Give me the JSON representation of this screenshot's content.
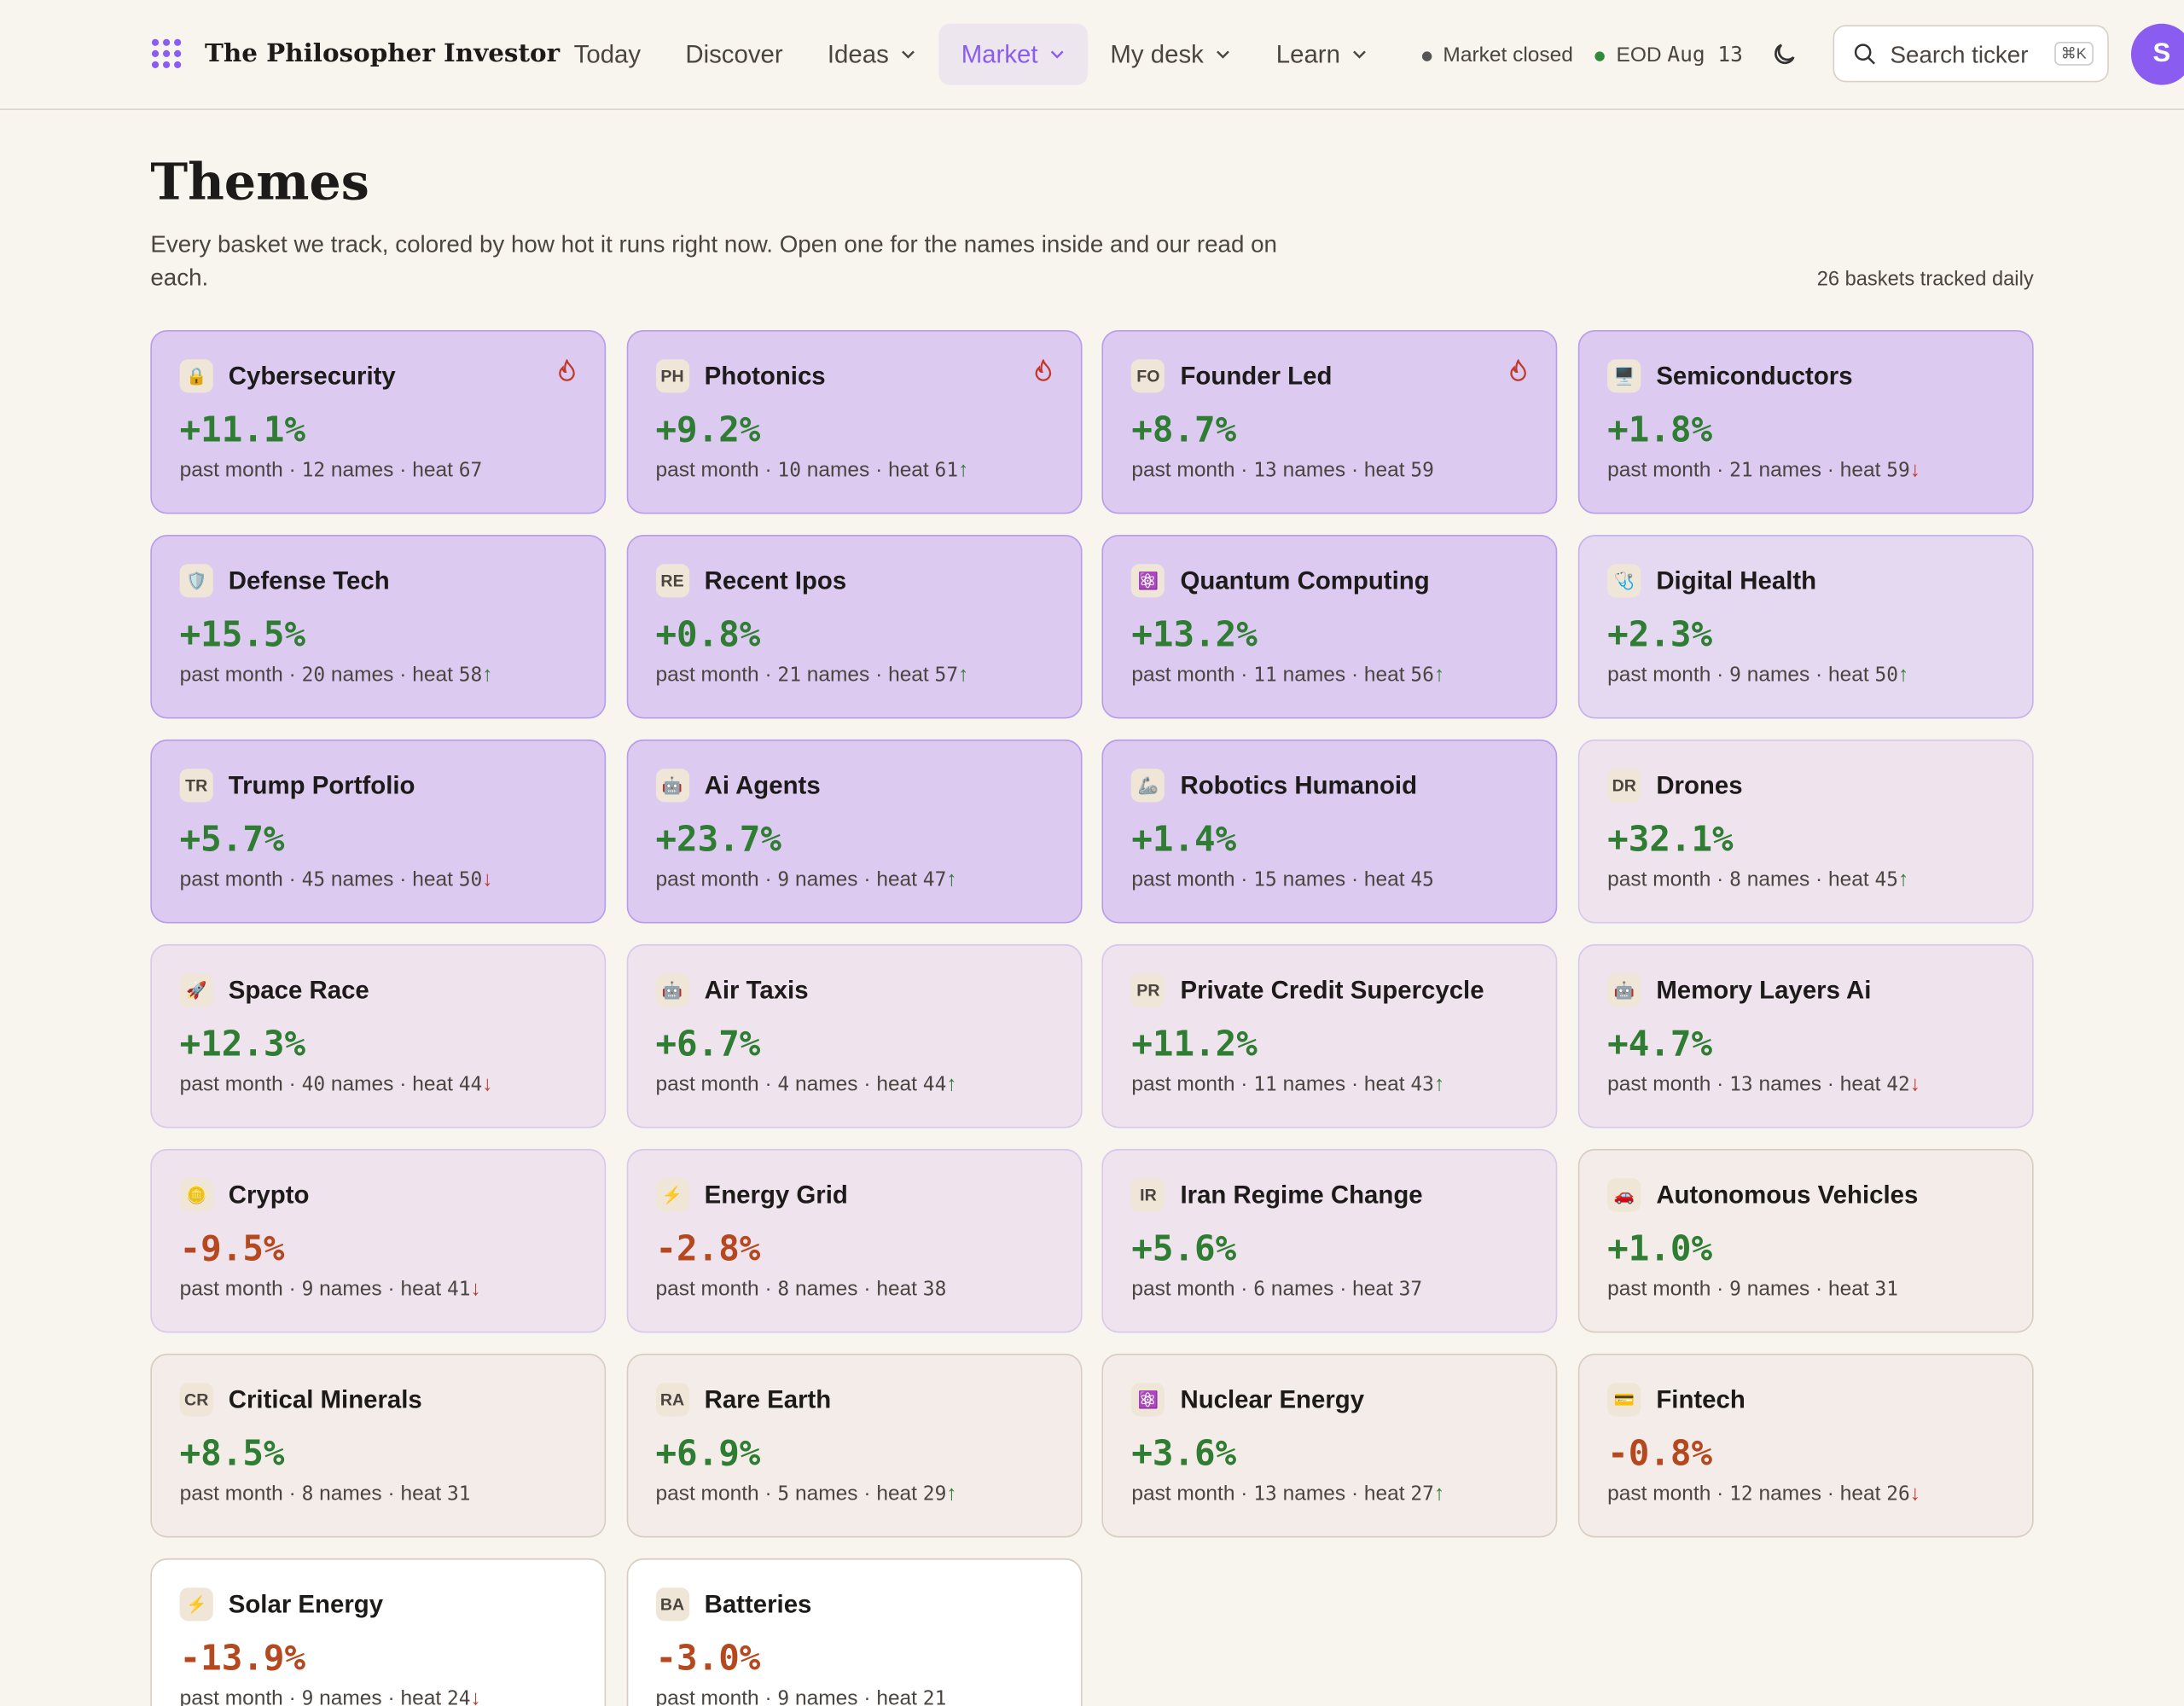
{
  "header": {
    "brand": "The Philosopher Investor",
    "nav": [
      {
        "label": "Today",
        "menu": false,
        "active": false
      },
      {
        "label": "Discover",
        "menu": false,
        "active": false
      },
      {
        "label": "Ideas",
        "menu": true,
        "active": false
      },
      {
        "label": "Market",
        "menu": true,
        "active": true
      },
      {
        "label": "My desk",
        "menu": true,
        "active": false
      },
      {
        "label": "Learn",
        "menu": true,
        "active": false
      }
    ],
    "status": "Market closed",
    "eod": "EOD",
    "eod_date": "Aug 13",
    "search": "Search ticker",
    "shortcut": "⌘K",
    "avatar": "S"
  },
  "page": {
    "title": "Themes",
    "description": "Every basket we track, colored by how hot it runs right now. Open one for the names inside and our read on each.",
    "count_note": "26 baskets tracked daily",
    "period": "past month",
    "names_unit": "names",
    "heat_unit": "heat"
  },
  "themes": [
    {
      "name": "Cybersecurity",
      "icon": "🔒",
      "change": "+11.1%",
      "names": 12,
      "heat": 67,
      "trend": null,
      "hot": true,
      "tint": "hot"
    },
    {
      "name": "Photonics",
      "icon": "PH",
      "change": "+9.2%",
      "names": 10,
      "heat": 61,
      "trend": "up",
      "hot": true,
      "tint": "hot"
    },
    {
      "name": "Founder Led",
      "icon": "FO",
      "change": "+8.7%",
      "names": 13,
      "heat": 59,
      "trend": null,
      "hot": true,
      "tint": "hot"
    },
    {
      "name": "Semiconductors",
      "icon": "🖥️",
      "change": "+1.8%",
      "names": 21,
      "heat": 59,
      "trend": "down",
      "hot": false,
      "tint": "hot"
    },
    {
      "name": "Defense Tech",
      "icon": "🛡️",
      "change": "+15.5%",
      "names": 20,
      "heat": 58,
      "trend": "up",
      "hot": false,
      "tint": "hot"
    },
    {
      "name": "Recent Ipos",
      "icon": "RE",
      "change": "+0.8%",
      "names": 21,
      "heat": 57,
      "trend": "up",
      "hot": false,
      "tint": "hot"
    },
    {
      "name": "Quantum Computing",
      "icon": "⚛️",
      "change": "+13.2%",
      "names": 11,
      "heat": 56,
      "trend": "up",
      "hot": false,
      "tint": "hot"
    },
    {
      "name": "Digital Health",
      "icon": "🩺",
      "change": "+2.3%",
      "names": 9,
      "heat": 50,
      "trend": "up",
      "hot": false,
      "tint": "warm"
    },
    {
      "name": "Trump Portfolio",
      "icon": "TR",
      "change": "+5.7%",
      "names": 45,
      "heat": 50,
      "trend": "down",
      "hot": false,
      "tint": "hot"
    },
    {
      "name": "Ai Agents",
      "icon": "🤖",
      "change": "+23.7%",
      "names": 9,
      "heat": 47,
      "trend": "up",
      "hot": false,
      "tint": "hot"
    },
    {
      "name": "Robotics Humanoid",
      "icon": "🦾",
      "change": "+1.4%",
      "names": 15,
      "heat": 45,
      "trend": null,
      "hot": false,
      "tint": "hot"
    },
    {
      "name": "Drones",
      "icon": "DR",
      "change": "+32.1%",
      "names": 8,
      "heat": 45,
      "trend": "up",
      "hot": false,
      "tint": "mild"
    },
    {
      "name": "Space Race",
      "icon": "🚀",
      "change": "+12.3%",
      "names": 40,
      "heat": 44,
      "trend": "down",
      "hot": false,
      "tint": "mild"
    },
    {
      "name": "Air Taxis",
      "icon": "🤖",
      "change": "+6.7%",
      "names": 4,
      "heat": 44,
      "trend": "up",
      "hot": false,
      "tint": "mild"
    },
    {
      "name": "Private Credit Supercycle",
      "icon": "PR",
      "change": "+11.2%",
      "names": 11,
      "heat": 43,
      "trend": "up",
      "hot": false,
      "tint": "mild"
    },
    {
      "name": "Memory Layers Ai",
      "icon": "🤖",
      "change": "+4.7%",
      "names": 13,
      "heat": 42,
      "trend": "down",
      "hot": false,
      "tint": "mild"
    },
    {
      "name": "Crypto",
      "icon": "🪙",
      "change": "-9.5%",
      "names": 9,
      "heat": 41,
      "trend": "down",
      "hot": false,
      "tint": "mild"
    },
    {
      "name": "Energy Grid",
      "icon": "⚡",
      "change": "-2.8%",
      "names": 8,
      "heat": 38,
      "trend": null,
      "hot": false,
      "tint": "mild"
    },
    {
      "name": "Iran Regime Change",
      "icon": "IR",
      "change": "+5.6%",
      "names": 6,
      "heat": 37,
      "trend": null,
      "hot": false,
      "tint": "mild"
    },
    {
      "name": "Autonomous Vehicles",
      "icon": "🚗",
      "change": "+1.0%",
      "names": 9,
      "heat": 31,
      "trend": null,
      "hot": false,
      "tint": "cool"
    },
    {
      "name": "Critical Minerals",
      "icon": "CR",
      "change": "+8.5%",
      "names": 8,
      "heat": 31,
      "trend": null,
      "hot": false,
      "tint": "cool"
    },
    {
      "name": "Rare Earth",
      "icon": "RA",
      "change": "+6.9%",
      "names": 5,
      "heat": 29,
      "trend": "up",
      "hot": false,
      "tint": "cool"
    },
    {
      "name": "Nuclear Energy",
      "icon": "⚛️",
      "change": "+3.6%",
      "names": 13,
      "heat": 27,
      "trend": "up",
      "hot": false,
      "tint": "cool"
    },
    {
      "name": "Fintech",
      "icon": "💳",
      "change": "-0.8%",
      "names": 12,
      "heat": 26,
      "trend": "down",
      "hot": false,
      "tint": "cool"
    },
    {
      "name": "Solar Energy",
      "icon": "⚡",
      "change": "-13.9%",
      "names": 9,
      "heat": 24,
      "trend": "down",
      "hot": false,
      "tint": "cold"
    },
    {
      "name": "Batteries",
      "icon": "BA",
      "change": "-3.0%",
      "names": 9,
      "heat": 21,
      "trend": null,
      "hot": false,
      "tint": "cold"
    }
  ]
}
